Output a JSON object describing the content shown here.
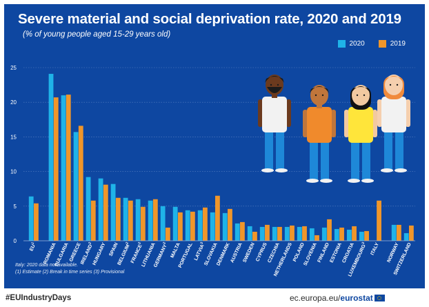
{
  "header": {
    "title": "Severe material and social deprivation rate, 2020 and 2019",
    "subtitle": "(% of young people aged 15-29 years old)"
  },
  "colors": {
    "background": "#0e47a1",
    "series_2020": "#1fb3e8",
    "series_2019": "#f0962a",
    "text": "#ffffff"
  },
  "footnotes": {
    "line1": "Italy: 2020 data not available.",
    "line2": "(1) Estimate (2) Break in time series (3) Provisional"
  },
  "footer": {
    "hashtag": "#EUIndustryDays",
    "site_prefix": "ec.europa.eu/",
    "site_brand": "eurostat"
  },
  "chart_data": {
    "type": "bar",
    "title": "Severe material and social deprivation rate, 2020 and 2019",
    "subtitle": "(% of young people aged 15-29 years old)",
    "ylim": [
      0,
      25
    ],
    "yticks": [
      0,
      5,
      10,
      15,
      20,
      25
    ],
    "grid": true,
    "legend_position": "top-right",
    "categories": [
      {
        "label": "EU",
        "sup": "1",
        "group": 0
      },
      {
        "label": "ROMANIA",
        "sup": "",
        "group": 1
      },
      {
        "label": "BULGARIA",
        "sup": "",
        "group": 1
      },
      {
        "label": "GREECE",
        "sup": "",
        "group": 1
      },
      {
        "label": "IRELAND",
        "sup": "2",
        "group": 1
      },
      {
        "label": "HUNGARY",
        "sup": "",
        "group": 1
      },
      {
        "label": "SPAIN",
        "sup": "",
        "group": 1
      },
      {
        "label": "BELGIUM",
        "sup": "2",
        "group": 1
      },
      {
        "label": "FRANCE",
        "sup": "2",
        "group": 1
      },
      {
        "label": "LITHUANIA",
        "sup": "",
        "group": 1
      },
      {
        "label": "GERMANY",
        "sup": "2",
        "group": 1
      },
      {
        "label": "MALTA",
        "sup": "",
        "group": 1
      },
      {
        "label": "PORTUGAL",
        "sup": "",
        "group": 1
      },
      {
        "label": "LATVIA",
        "sup": "3",
        "group": 1
      },
      {
        "label": "SLOVAKIA",
        "sup": "",
        "group": 1
      },
      {
        "label": "DENMARK",
        "sup": "",
        "group": 1
      },
      {
        "label": "AUSTRIA",
        "sup": "",
        "group": 1
      },
      {
        "label": "SWEDEN",
        "sup": "",
        "group": 1
      },
      {
        "label": "CYPRUS",
        "sup": "",
        "group": 1
      },
      {
        "label": "CZECHIA",
        "sup": "",
        "group": 1
      },
      {
        "label": "NETHERLANDS",
        "sup": "",
        "group": 1
      },
      {
        "label": "POLAND",
        "sup": "",
        "group": 1
      },
      {
        "label": "SLOVENIA",
        "sup": "",
        "group": 1
      },
      {
        "label": "FINLAND",
        "sup": "",
        "group": 1
      },
      {
        "label": "ESTONIA",
        "sup": "",
        "group": 1
      },
      {
        "label": "CROATIA",
        "sup": "",
        "group": 1
      },
      {
        "label": "LUXEMBOURG",
        "sup": "3",
        "group": 1
      },
      {
        "label": "ITALY",
        "sup": "",
        "group": 1
      },
      {
        "label": "NORWAY",
        "sup": "",
        "group": 2
      },
      {
        "label": "SWITZERLAND",
        "sup": "",
        "group": 2
      }
    ],
    "series": [
      {
        "name": "2020",
        "color": "#1fb3e8",
        "values": [
          6.4,
          24.1,
          21.0,
          15.7,
          9.2,
          9.0,
          8.2,
          6.2,
          6.0,
          5.8,
          5.0,
          4.9,
          4.4,
          4.4,
          4.1,
          4.0,
          2.5,
          2.1,
          2.0,
          2.0,
          2.0,
          2.0,
          1.8,
          1.9,
          1.7,
          1.6,
          1.3,
          null,
          2.3,
          1.1
        ]
      },
      {
        "name": "2019",
        "color": "#f0962a",
        "values": [
          5.4,
          20.7,
          21.1,
          16.6,
          5.8,
          8.1,
          6.2,
          5.8,
          4.9,
          6.0,
          1.9,
          4.1,
          4.2,
          4.8,
          6.5,
          4.6,
          2.7,
          1.3,
          2.3,
          2.0,
          2.2,
          2.1,
          0.8,
          3.1,
          1.9,
          2.1,
          1.4,
          5.8,
          2.3,
          2.2
        ]
      }
    ]
  },
  "illustration": {
    "description_icons": [
      "person-icon",
      "person-icon",
      "person-icon",
      "person-icon"
    ]
  }
}
